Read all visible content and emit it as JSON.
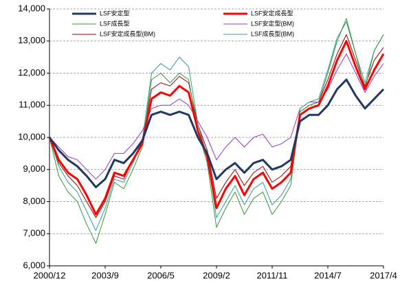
{
  "chart_data": {
    "type": "line",
    "categories": [
      "2000/12",
      null,
      null,
      null,
      null,
      null,
      "2003/9",
      null,
      null,
      null,
      null,
      null,
      "2006/5",
      null,
      null,
      null,
      null,
      null,
      "2009/2",
      null,
      null,
      null,
      null,
      null,
      "2011/11",
      null,
      null,
      null,
      null,
      null,
      "2014/7",
      null,
      null,
      null,
      null,
      null,
      "2017/4"
    ],
    "series": [
      {
        "name": "LSF安定型",
        "color": "#1f3864",
        "width": 3,
        "values": [
          10000,
          9600,
          9300,
          9100,
          8800,
          8450,
          8700,
          9300,
          9200,
          9500,
          9900,
          10700,
          10800,
          10700,
          10800,
          10700,
          10000,
          9500,
          8700,
          9000,
          9200,
          8900,
          9200,
          9300,
          9000,
          9100,
          9300,
          10500,
          10700,
          10700,
          11000,
          11500,
          11800,
          11300,
          10900,
          11200,
          11500
        ]
      },
      {
        "name": "LSF安定成長型",
        "color": "#ff0000",
        "width": 3,
        "values": [
          10000,
          9300,
          8900,
          8700,
          8200,
          7600,
          8100,
          8900,
          8800,
          9300,
          9800,
          11200,
          11400,
          11300,
          11600,
          11400,
          10200,
          9400,
          7800,
          8400,
          8800,
          8200,
          8700,
          8900,
          8400,
          8600,
          8900,
          10700,
          10900,
          11000,
          11600,
          12400,
          13000,
          12200,
          11500,
          12100,
          12600
        ]
      },
      {
        "name": "LSF成長型",
        "color": "#339933",
        "width": 1,
        "values": [
          10000,
          8800,
          8300,
          8000,
          7300,
          6700,
          7600,
          8600,
          8400,
          9000,
          9700,
          11800,
          12000,
          11700,
          12000,
          11800,
          10200,
          9200,
          7200,
          7800,
          8300,
          7600,
          8100,
          8300,
          7600,
          8000,
          8500,
          10800,
          11000,
          11100,
          12000,
          13000,
          13700,
          12600,
          11500,
          12700,
          13200
        ]
      },
      {
        "name": "LSF安定型(BM)",
        "color": "#9933cc",
        "width": 1,
        "values": [
          10000,
          9700,
          9400,
          9300,
          9000,
          8700,
          9000,
          9500,
          9500,
          9800,
          10200,
          10900,
          11000,
          11000,
          11200,
          11000,
          10500,
          10000,
          9300,
          9700,
          10000,
          9700,
          10000,
          10100,
          9700,
          9800,
          10000,
          10900,
          11100,
          11100,
          11500,
          12100,
          12600,
          12000,
          11400,
          11900,
          12300
        ]
      },
      {
        "name": "LSF安定成長型(BM)",
        "color": "#990000",
        "width": 1,
        "values": [
          10000,
          9200,
          8800,
          8500,
          8000,
          7500,
          8000,
          8800,
          8700,
          9300,
          9900,
          11500,
          11700,
          11600,
          11900,
          11700,
          10400,
          9600,
          8100,
          8600,
          9000,
          8500,
          8900,
          9100,
          8600,
          8800,
          9100,
          10800,
          11000,
          11100,
          11800,
          12600,
          13200,
          12400,
          11600,
          12400,
          12800
        ]
      },
      {
        "name": "LSF成長型(BM)",
        "color": "#339999",
        "width": 1,
        "values": [
          10000,
          9100,
          8600,
          8300,
          7700,
          7100,
          7800,
          8700,
          8600,
          9200,
          9900,
          12000,
          12300,
          12100,
          12500,
          12200,
          10400,
          9400,
          7500,
          8000,
          8500,
          7900,
          8400,
          8600,
          7900,
          8200,
          8700,
          10900,
          11100,
          11200,
          12100,
          13100,
          13600,
          12600,
          11700,
          12700,
          13200
        ]
      }
    ],
    "ylim": [
      6000,
      14000
    ],
    "yticks": [
      {
        "value": 6000,
        "label": "6,000"
      },
      {
        "value": 7000,
        "label": "7,000"
      },
      {
        "value": 8000,
        "label": "8,000"
      },
      {
        "value": 9000,
        "label": "9,000"
      },
      {
        "value": 10000,
        "label": "10,000"
      },
      {
        "value": 11000,
        "label": "11,000"
      },
      {
        "value": 12000,
        "label": "12,000"
      },
      {
        "value": 13000,
        "label": "13,000"
      },
      {
        "value": 14000,
        "label": "14,000"
      }
    ],
    "grid": true
  }
}
